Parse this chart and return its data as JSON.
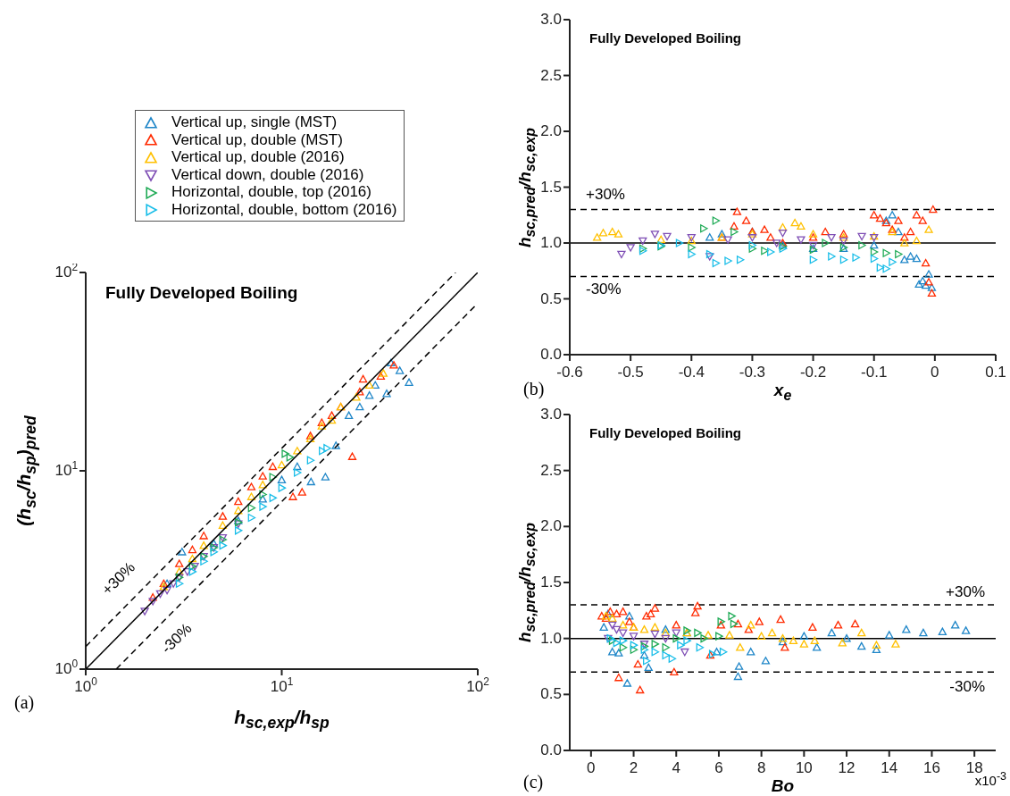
{
  "chart_data": [
    {
      "type": "scatter",
      "title": "Fully Developed Boiling",
      "xlabel": "h$_{sc,exp}$/h$_{sp}$",
      "ylabel": "(h$_{sc}$/h$_{sp}$)$_{pred}$",
      "log": "xy",
      "xlim": [
        1,
        100
      ],
      "ylim": [
        1,
        100
      ],
      "xticks": [
        {
          "value": 1,
          "label": "10$^{0}$"
        },
        {
          "value": 10,
          "label": "10$^{1}$"
        },
        {
          "value": 100,
          "label": "10$^{2}$"
        }
      ],
      "yticks": [
        {
          "value": 1,
          "label": "10$^{0}$"
        },
        {
          "value": 10,
          "label": "10$^{1}$"
        },
        {
          "value": 100,
          "label": "10$^{2}$"
        }
      ],
      "legend": "top",
      "annotations": [
        "(a)",
        "+30%",
        "-30%"
      ],
      "series": [
        {
          "name": "Vertical up, single (MST)",
          "color": "#1f86c8",
          "marker": "triangle",
          "x": [
            2.6,
            3.1,
            4.5,
            6,
            8,
            10,
            12,
            14.1,
            16.7,
            18.9,
            22,
            25,
            28,
            30,
            34.3,
            36.1,
            40,
            44.6
          ],
          "values": [
            2.7,
            3.9,
            4.3,
            5.6,
            7.2,
            9,
            10.5,
            8.8,
            9.3,
            13.4,
            19,
            21,
            24,
            27,
            24.5,
            35,
            32,
            27.9
          ]
        },
        {
          "name": "Vertical up, double (MST)",
          "color": "#ff2a00",
          "marker": "triangle",
          "x": [
            2.2,
            2.5,
            3,
            3.5,
            4,
            5,
            6,
            7,
            8,
            9,
            11.4,
            12.7,
            14,
            16,
            18,
            20,
            22.9,
            25,
            26,
            32,
            37.3
          ],
          "values": [
            2.3,
            2.7,
            3.4,
            4,
            4.7,
            5.9,
            7,
            8.3,
            9.4,
            10.5,
            7.4,
            7.8,
            15,
            17.5,
            19,
            21,
            11.8,
            25,
            29,
            30,
            34.1
          ]
        },
        {
          "name": "Vertical up, double (2016)",
          "color": "#ffc000",
          "marker": "triangle",
          "x": [
            2.5,
            3,
            3.5,
            4,
            5,
            6,
            7,
            8,
            10,
            12,
            14,
            16,
            18,
            20,
            24,
            28,
            33
          ],
          "values": [
            2.6,
            3.1,
            3.6,
            4.2,
            5.3,
            6.3,
            7.4,
            8.5,
            10.7,
            12.6,
            14.5,
            16.8,
            18,
            21,
            23.5,
            27,
            31
          ]
        },
        {
          "name": "Vertical down, double (2016)",
          "color": "#7f4fb5",
          "marker": "triangle-down",
          "x": [
            2,
            2.2,
            2.4,
            2.6,
            2.8,
            3,
            3.3,
            3.6,
            4,
            4.5,
            5,
            6
          ],
          "values": [
            1.96,
            2.2,
            2.4,
            2.5,
            2.7,
            2.9,
            3.1,
            3.3,
            3.7,
            4.1,
            4.6,
            5.4
          ]
        },
        {
          "name": "Horizontal, double, top (2016)",
          "color": "#1eaa55",
          "marker": "triangle-right",
          "x": [
            3,
            3.5,
            4,
            4.5,
            5,
            6,
            7,
            8,
            9,
            10.4,
            11
          ],
          "values": [
            2.9,
            3.3,
            3.7,
            4.1,
            4.5,
            5.5,
            6.5,
            7.6,
            9.3,
            12.2,
            11.7
          ]
        },
        {
          "name": "Horizontal, double, bottom (2016)",
          "color": "#17bde8",
          "marker": "triangle-right",
          "x": [
            3,
            3.5,
            4,
            4.5,
            5,
            6,
            7,
            8,
            9,
            10,
            12,
            14,
            16.1,
            17
          ],
          "values": [
            2.7,
            3.1,
            3.5,
            3.9,
            4.2,
            5,
            5.8,
            6.6,
            7.3,
            8.2,
            9.8,
            11.3,
            12.6,
            13
          ]
        },
        {
          "type": "line",
          "color": "#000000",
          "line_style": "solid",
          "marker": "none",
          "x": [
            1,
            100
          ],
          "values": [
            1,
            100
          ]
        },
        {
          "type": "line",
          "color": "#000000",
          "line_style": "dashed",
          "marker": "none",
          "x": [
            1,
            77
          ],
          "values": [
            1.3,
            100
          ]
        },
        {
          "type": "line",
          "color": "#000000",
          "line_style": "dashed",
          "marker": "none",
          "x": [
            1.43,
            100
          ],
          "values": [
            1,
            70
          ]
        }
      ]
    },
    {
      "type": "scatter",
      "title": "Fully Developed Boiling",
      "xlabel": "x$_{e}$",
      "ylabel": "h$_{sc,pred}$/h$_{sc,exp}$",
      "xlim": [
        -0.6,
        0.1
      ],
      "ylim": [
        0,
        3
      ],
      "xticks": [
        -0.6,
        -0.5,
        -0.4,
        -0.3,
        -0.2,
        -0.1,
        0,
        0.1
      ],
      "yticks": [
        {
          "value": 0,
          "label": "0.0"
        },
        0.5,
        {
          "value": 1,
          "label": "1.0"
        },
        1.5,
        {
          "value": 2,
          "label": "2.0"
        },
        2.5,
        {
          "value": 3,
          "label": "3.0"
        }
      ],
      "annotations": [
        "(b)",
        "+30%",
        "-30%"
      ],
      "ref_lines": [
        {
          "axis": "y",
          "value": 1,
          "line_style": "solid",
          "color": "#000000"
        },
        {
          "axis": "y",
          "value": 1.3,
          "line_style": "dashed",
          "color": "#000000"
        },
        {
          "axis": "y",
          "value": 0.7,
          "line_style": "dashed",
          "color": "#000000"
        }
      ],
      "series": [
        {
          "color": "#1f86c8",
          "marker": "triangle",
          "x": [
            -0.37,
            -0.35,
            -0.3,
            -0.25,
            -0.2,
            -0.15,
            -0.1,
            -0.08,
            -0.07,
            -0.06,
            -0.05,
            -0.04,
            -0.03,
            -0.026,
            -0.02,
            -0.015,
            -0.01,
            -0.005
          ],
          "values": [
            1.05,
            1.08,
            1.1,
            0.98,
            0.95,
            0.95,
            0.98,
            1.2,
            1.25,
            1.1,
            0.85,
            0.88,
            0.86,
            0.63,
            0.66,
            0.62,
            0.72,
            0.6
          ]
        },
        {
          "color": "#ff2a00",
          "marker": "triangle",
          "x": [
            -0.35,
            -0.33,
            -0.325,
            -0.31,
            -0.3,
            -0.28,
            -0.27,
            -0.25,
            -0.2,
            -0.18,
            -0.15,
            -0.1,
            -0.09,
            -0.08,
            -0.07,
            -0.06,
            -0.05,
            -0.04,
            -0.03,
            -0.02,
            -0.015,
            -0.01,
            -0.005,
            -0.003
          ],
          "values": [
            1.05,
            1.15,
            1.28,
            1.2,
            1.1,
            1.12,
            1.05,
            1,
            1.05,
            1.1,
            1.08,
            1.25,
            1.22,
            1.18,
            1.12,
            1.2,
            1.05,
            1.1,
            1.25,
            1.2,
            0.82,
            0.65,
            0.55,
            1.3
          ]
        },
        {
          "color": "#ffc000",
          "marker": "triangle",
          "x": [
            -0.555,
            -0.545,
            -0.53,
            -0.52,
            -0.45,
            -0.4,
            -0.35,
            -0.3,
            -0.25,
            -0.23,
            -0.22,
            -0.2,
            -0.15,
            -0.1,
            -0.07,
            -0.05,
            -0.03,
            -0.01
          ],
          "values": [
            1.05,
            1.09,
            1.1,
            1.08,
            1.03,
            1.02,
            1.05,
            1.08,
            1.14,
            1.18,
            1.15,
            1.08,
            1.05,
            1.06,
            1.1,
            1,
            1.02,
            1.12
          ]
        },
        {
          "color": "#7f4fb5",
          "marker": "triangle-down",
          "x": [
            -0.515,
            -0.5,
            -0.48,
            -0.46,
            -0.44,
            -0.4,
            -0.37,
            -0.34,
            -0.3,
            -0.26,
            -0.25,
            -0.22,
            -0.2,
            -0.17,
            -0.15,
            -0.12,
            -0.1
          ],
          "values": [
            0.9,
            0.96,
            1.02,
            1.08,
            1.06,
            1.05,
            0.88,
            1.03,
            1.05,
            1,
            1.09,
            1.03,
            0.98,
            1.05,
            1.02,
            1.06,
            1.05
          ]
        },
        {
          "color": "#1eaa55",
          "marker": "triangle-right",
          "x": [
            -0.48,
            -0.45,
            -0.4,
            -0.38,
            -0.36,
            -0.33,
            -0.3,
            -0.28,
            -0.25,
            -0.2,
            -0.18,
            -0.15,
            -0.12,
            -0.1,
            -0.08,
            -0.06
          ],
          "values": [
            0.95,
            0.97,
            0.96,
            1.13,
            1.2,
            1.1,
            0.95,
            0.93,
            0.97,
            0.94,
            1,
            0.96,
            0.98,
            0.92,
            0.91,
            0.9
          ]
        },
        {
          "color": "#17bde8",
          "marker": "triangle-right",
          "x": [
            -0.48,
            -0.45,
            -0.42,
            -0.4,
            -0.37,
            -0.36,
            -0.34,
            -0.32,
            -0.3,
            -0.27,
            -0.25,
            -0.2,
            -0.17,
            -0.15,
            -0.13,
            -0.1,
            -0.09,
            -0.08,
            -0.07
          ],
          "values": [
            0.93,
            0.98,
            1,
            0.9,
            0.9,
            0.82,
            0.84,
            0.85,
            0.98,
            0.92,
            0.95,
            0.85,
            0.88,
            0.85,
            0.87,
            0.86,
            0.78,
            0.77,
            0.83
          ]
        }
      ]
    },
    {
      "type": "scatter",
      "title": "Fully Developed Boiling",
      "xlabel": "Bo",
      "ylabel": "h$_{sc,pred}$/h$_{sc,exp}$",
      "xlim": [
        -1,
        19
      ],
      "ylim": [
        0,
        3
      ],
      "xticks": [
        0,
        2,
        4,
        6,
        8,
        10,
        12,
        14,
        16,
        18
      ],
      "yticks": [
        {
          "value": 0,
          "label": "0.0"
        },
        0.5,
        {
          "value": 1,
          "label": "1.0"
        },
        1.5,
        {
          "value": 2,
          "label": "2.0"
        },
        2.5,
        {
          "value": 3,
          "label": "3.0"
        }
      ],
      "annotations": [
        "(c)",
        "x10$^{-3}$",
        "+30%",
        "-30%"
      ],
      "ref_lines": [
        {
          "axis": "y",
          "value": 1,
          "line_style": "solid",
          "color": "#000000"
        },
        {
          "axis": "y",
          "value": 1.3,
          "line_style": "dashed",
          "color": "#000000"
        },
        {
          "axis": "y",
          "value": 0.7,
          "line_style": "dashed",
          "color": "#000000"
        }
      ],
      "series": [
        {
          "color": "#1f86c8",
          "marker": "triangle",
          "x": [
            0.6,
            0.8,
            1,
            1.3,
            1.7,
            1.8,
            2.5,
            2.7,
            3.5,
            4.5,
            5.9,
            6.9,
            6.95,
            7.5,
            8.2,
            9,
            10,
            10.6,
            11.3,
            12,
            12.7,
            13.4,
            14,
            14.8,
            15.6,
            16.5,
            17.1,
            17.6
          ],
          "values": [
            1.1,
            1.22,
            0.88,
            0.87,
            0.6,
            1.2,
            0.85,
            0.74,
            1.08,
            1.05,
            0.88,
            0.66,
            0.75,
            0.88,
            0.8,
            0.97,
            1.02,
            0.92,
            1.05,
            1,
            0.93,
            0.9,
            1.03,
            1.08,
            1.05,
            1.06,
            1.12,
            1.07
          ]
        },
        {
          "color": "#ff2a00",
          "marker": "triangle",
          "x": [
            0.5,
            0.7,
            0.9,
            1.2,
            1.3,
            1.5,
            1.8,
            2,
            2.2,
            2.3,
            2.6,
            2.8,
            3,
            3.9,
            4,
            4.9,
            5,
            5.6,
            6.1,
            6.9,
            7.4,
            7.9,
            8.9,
            9.1,
            10.4,
            11.6,
            12.4
          ],
          "values": [
            1.2,
            1.18,
            1.24,
            1.22,
            0.65,
            1.24,
            1.15,
            1.1,
            0.77,
            0.54,
            1.2,
            1.22,
            1.27,
            0.7,
            1.12,
            1.23,
            1.29,
            0.85,
            1.12,
            1.13,
            1.08,
            1.15,
            1.17,
            0.92,
            1.1,
            1.12,
            1.13
          ]
        },
        {
          "color": "#ffc000",
          "marker": "triangle",
          "x": [
            0.7,
            1,
            1.5,
            2,
            2.5,
            3,
            3.5,
            4.5,
            5.5,
            6.5,
            7,
            7.5,
            8,
            8.5,
            9,
            9.5,
            10,
            10.5,
            11.8,
            12.7,
            13.4,
            14.3
          ],
          "values": [
            1.2,
            1.18,
            1.12,
            1.1,
            1.08,
            1.1,
            1.05,
            1.05,
            1.03,
            1.03,
            0.92,
            1.12,
            1.02,
            1.05,
            1,
            0.98,
            0.95,
            0.98,
            0.96,
            1.05,
            0.94,
            0.95
          ]
        },
        {
          "color": "#7f4fb5",
          "marker": "triangle-down",
          "x": [
            0.8,
            1,
            1.2,
            1.5,
            2,
            2.5,
            3,
            3.5,
            4,
            4.4
          ],
          "values": [
            1,
            1.12,
            1.08,
            1.05,
            1.02,
            0.95,
            1.04,
            1,
            1.05,
            0.88
          ]
        },
        {
          "color": "#1eaa55",
          "marker": "triangle-right",
          "x": [
            1,
            1.5,
            2,
            2.5,
            3,
            3.5,
            4,
            4.5,
            5,
            5.3,
            6,
            6.1,
            6.6,
            6.7
          ],
          "values": [
            0.98,
            0.92,
            0.9,
            0.93,
            0.95,
            0.92,
            1,
            1.07,
            1.05,
            1,
            1.02,
            1.15,
            1.2,
            1.13
          ]
        },
        {
          "color": "#17bde8",
          "marker": "triangle-right",
          "x": [
            0.9,
            1.2,
            1.5,
            2,
            2.5,
            2.6,
            3,
            3.5,
            3.8,
            4.2,
            4.5,
            5.1,
            5.7,
            6.2
          ],
          "values": [
            1,
            0.96,
            0.98,
            0.94,
            0.9,
            0.8,
            0.88,
            0.85,
            0.82,
            0.94,
            0.98,
            0.92,
            0.86,
            0.88
          ]
        }
      ]
    }
  ]
}
